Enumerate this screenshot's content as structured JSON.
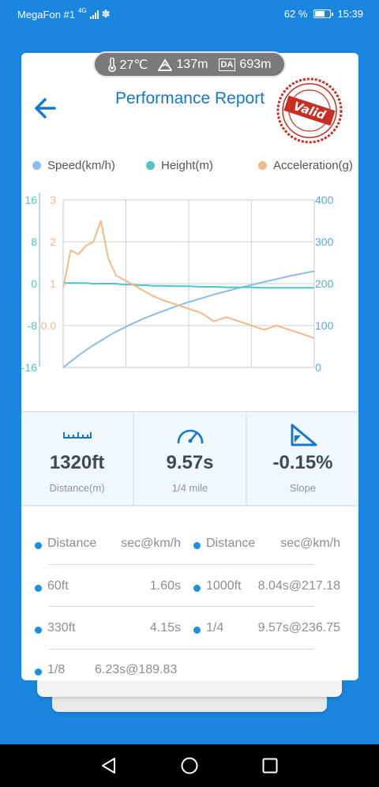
{
  "status_bar": {
    "carrier": "MegaFon #1",
    "network": "4G",
    "battery_percent": "62 %",
    "battery_level": 0.62,
    "time": "15:39"
  },
  "weather": {
    "temperature": "27℃",
    "altitude": "137m",
    "da_badge": "DA",
    "density_altitude": "693m"
  },
  "header": {
    "title": "Performance Report",
    "stamp_text": "Valid",
    "back_icon": "back-arrow-icon"
  },
  "colors": {
    "primary": "#1778c8",
    "accent": "#1b8fe0",
    "speed": "#8bbde8",
    "height": "#4cc7c3",
    "acceleration": "#f4b98a",
    "stamp": "#c92e23"
  },
  "legend": {
    "speed": "Speed(km/h)",
    "height": "Height(m)",
    "acceleration": "Acceleration(g)"
  },
  "chart_data": {
    "type": "line",
    "left_axis_height": {
      "ticks": [
        "16",
        "8",
        "0",
        "-8",
        "-16"
      ],
      "range": [
        -16,
        16
      ],
      "color": "#4cc7c3"
    },
    "left_axis_accel": {
      "ticks": [
        "3",
        "2",
        "1",
        "0.0"
      ],
      "range": [
        -1,
        3
      ],
      "color": "#f4b98a"
    },
    "right_axis_speed": {
      "ticks": [
        "400",
        "300",
        "200",
        "100",
        "0"
      ],
      "range": [
        0,
        400
      ],
      "color": "#58a8dc"
    },
    "grid": true,
    "legend_position": "top",
    "x": [
      0,
      0.03,
      0.06,
      0.09,
      0.12,
      0.15,
      0.18,
      0.21,
      0.24,
      0.27,
      0.3,
      0.33,
      0.36,
      0.4,
      0.45,
      0.5,
      0.55,
      0.6,
      0.65,
      0.7,
      0.75,
      0.8,
      0.85,
      0.9,
      0.95,
      1.0
    ],
    "series": [
      {
        "name": "Speed(km/h)",
        "axis": "right",
        "values": [
          0,
          14,
          28,
          41,
          53,
          64,
          75,
          85,
          94,
          103,
          111,
          119,
          126,
          135,
          146,
          156,
          165,
          174,
          182,
          190,
          197,
          204,
          211,
          218,
          224,
          230
        ]
      },
      {
        "name": "Height(m)",
        "axis": "height",
        "values": [
          0.1,
          0.1,
          0.1,
          0.1,
          0.0,
          0.0,
          0.0,
          0.0,
          -0.2,
          -0.2,
          -0.3,
          -0.3,
          -0.4,
          -0.4,
          -0.5,
          -0.5,
          -0.6,
          -0.6,
          -0.7,
          -0.7,
          -0.7,
          -0.8,
          -0.8,
          -0.8,
          -0.8,
          -0.8
        ]
      },
      {
        "name": "Acceleration(g)",
        "axis": "accel",
        "values": [
          0.9,
          1.8,
          1.7,
          1.9,
          2.0,
          2.5,
          1.6,
          1.2,
          1.1,
          1.0,
          0.9,
          0.8,
          0.7,
          0.6,
          0.5,
          0.4,
          0.3,
          0.1,
          0.2,
          0.1,
          0.0,
          -0.1,
          0.0,
          -0.1,
          -0.2,
          -0.3
        ]
      }
    ]
  },
  "stats": [
    {
      "icon": "ruler-icon",
      "value": "1320ft",
      "label": "Distance(m)"
    },
    {
      "icon": "speedometer-icon",
      "value": "9.57s",
      "label": "1/4 mile"
    },
    {
      "icon": "slope-icon",
      "value": "-0.15%",
      "label": "Slope"
    }
  ],
  "splits": {
    "headers": [
      {
        "distance": "Distance",
        "time": "sec@km/h"
      },
      {
        "distance": "Distance",
        "time": "sec@km/h"
      }
    ],
    "rows": [
      [
        {
          "distance": "60ft",
          "time": "1.60s"
        },
        {
          "distance": "1000ft",
          "time": "8.04s@217.18"
        }
      ],
      [
        {
          "distance": "330ft",
          "time": "4.15s"
        },
        {
          "distance": "1/4",
          "time": "9.57s@236.75"
        }
      ],
      [
        {
          "distance": "1/8",
          "time": "6.23s@189.83"
        }
      ]
    ]
  },
  "navbar": {
    "back": "nav-back-icon",
    "home": "nav-home-icon",
    "recents": "nav-recents-icon"
  }
}
